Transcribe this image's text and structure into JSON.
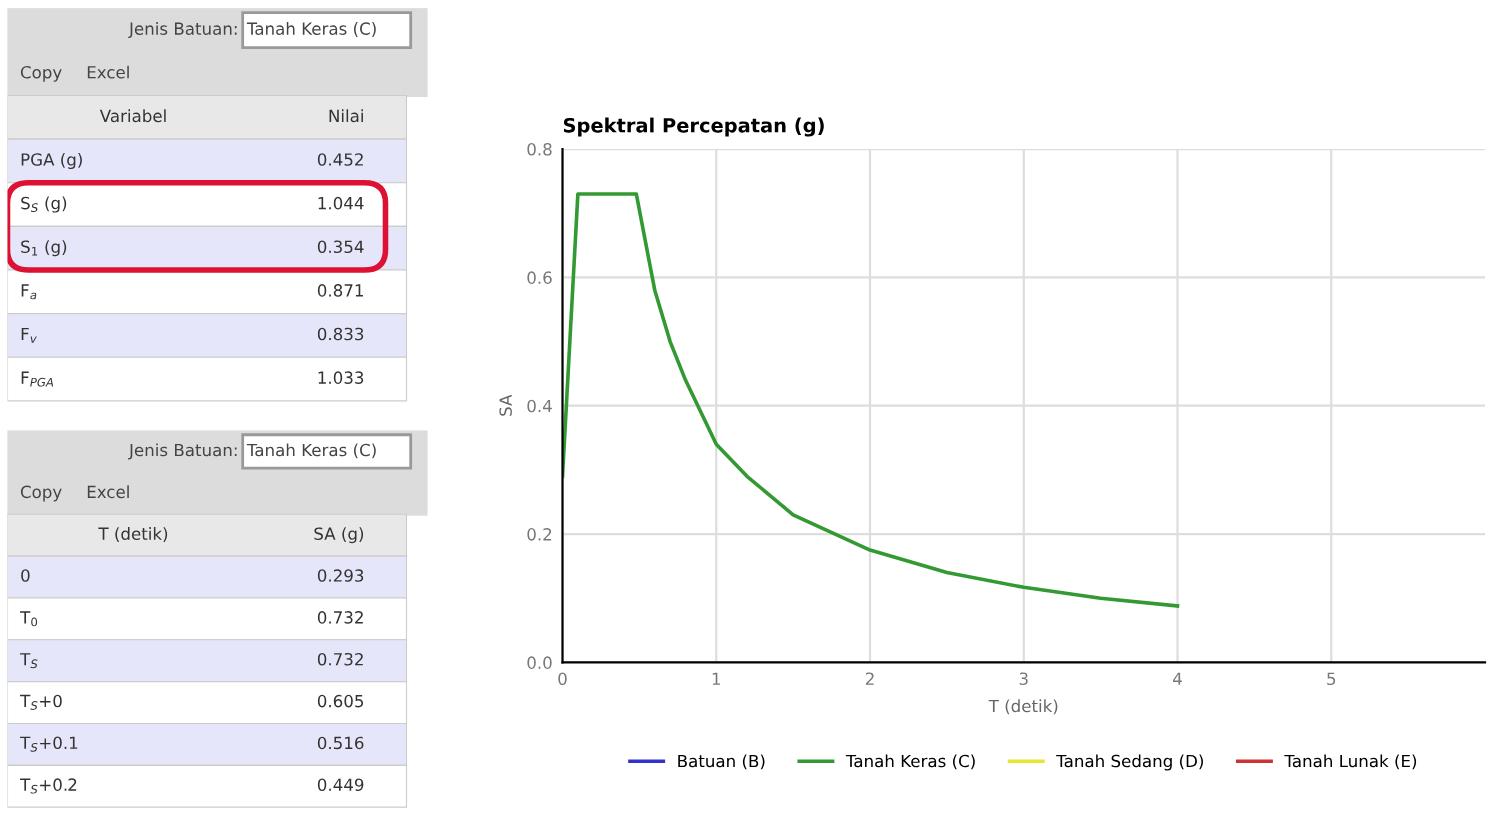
{
  "chart_data": [
    {
      "type": "other",
      "annotations": [
        "Jenis Batuan:",
        "Tanah Keras (C)",
        "Copy",
        "Excel",
        "Variabel",
        "Nilai",
        "PGA (g)",
        "0.452",
        "S$_{S}$ (g)",
        "1.044",
        "S$_{1}$ (g)",
        "0.354",
        "F$_{a}$",
        "0.871",
        "F$_{v}$",
        "0.833",
        "F$_{PGA}$",
        "1.033"
      ]
    },
    {
      "type": "other",
      "annotations": [
        "Jenis Batuan:",
        "Tanah Keras (C)",
        "Copy",
        "Excel",
        "T (detik)",
        "SA (g)",
        "0",
        "0.293",
        "T$_{0}$",
        "0.732",
        "T$_{S}$",
        "0.732",
        "T$_{S}$+0",
        "0.605",
        "T$_{S}$+0.1",
        "0.516",
        "T$_{S}$+0.2",
        "0.449"
      ]
    },
    {
      "type": "line",
      "title": "Spektral Percepatan (g)",
      "xlabel": "T (detik)",
      "ylabel": "SA",
      "x": [
        0,
        0.1,
        0.48,
        0.6,
        0.7,
        0.8,
        1.0,
        1.2,
        1.5,
        2.0,
        2.5,
        3.0,
        3.5,
        4.0
      ],
      "series": [
        {
          "name": "Batuan (B)",
          "color": "#3333cc",
          "values": [
            null,
            null,
            null,
            null,
            null,
            null,
            null,
            null,
            null,
            null,
            null,
            null,
            null,
            null
          ]
        },
        {
          "name": "Tanah Keras (C)",
          "color": "#339933",
          "values": [
            0.29,
            0.73,
            0.73,
            0.58,
            0.5,
            0.44,
            0.34,
            0.29,
            0.23,
            0.175,
            0.14,
            0.117,
            0.1,
            0.088
          ]
        },
        {
          "name": "Tanah Sedang (D)",
          "color": "#e6e633",
          "values": [
            null,
            null,
            null,
            null,
            null,
            null,
            null,
            null,
            null,
            null,
            null,
            null,
            null,
            null
          ]
        },
        {
          "name": "Tanah Lunak (E)",
          "color": "#cc3333",
          "values": [
            null,
            null,
            null,
            null,
            null,
            null,
            null,
            null,
            null,
            null,
            null,
            null,
            null,
            null
          ]
        }
      ],
      "xlim": [
        0,
        6
      ],
      "xticks": [
        0,
        1,
        2,
        3,
        4,
        5
      ],
      "ylim": [
        0,
        0.8
      ],
      "yticks": [
        {
          "value": 0,
          "label": "0.0"
        },
        {
          "value": 0.2,
          "label": "0.2"
        },
        {
          "value": 0.4,
          "label": "0.4"
        },
        {
          "value": 0.6,
          "label": "0.6"
        },
        {
          "value": 0.8,
          "label": "0.8"
        }
      ],
      "grid": true,
      "legend": "bottom"
    }
  ]
}
